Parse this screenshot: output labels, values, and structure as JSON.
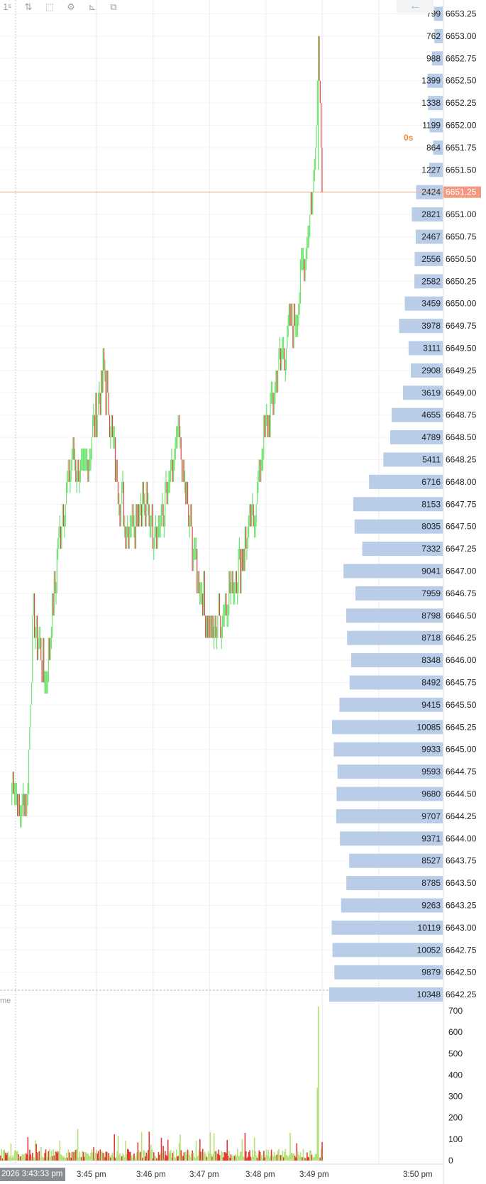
{
  "toolbar": {
    "items": [
      {
        "label": "1ˢ",
        "icon": "interval-selector"
      },
      {
        "label": "⇅",
        "icon": "chart-type-icon"
      },
      {
        "label": "⬚",
        "icon": "selection-icon"
      },
      {
        "label": "⚙",
        "icon": "gear-icon"
      },
      {
        "label": "⊾",
        "icon": "axis-icon"
      },
      {
        "label": "⧉",
        "icon": "layers-icon"
      }
    ],
    "back_icon": "←"
  },
  "colors": {
    "up": "#6ee36e",
    "down": "#e04545",
    "profile_bar": "#b9cde8",
    "current_price_bg": "#f4987f",
    "timer": "#f08a3c",
    "vol_up": "#b5e07a",
    "vol_down": "#e53935"
  },
  "timer_text": "0s",
  "volume_title": "me",
  "crosshair_time": "2026 3:43:33 pm",
  "current_price": "6651.25",
  "chart_data": [
    {
      "type": "bar",
      "subtype": "candlestick-with-volume-profile",
      "price_axis": [
        "6653.25",
        "6653.00",
        "6652.75",
        "6652.50",
        "6652.25",
        "6652.00",
        "6651.75",
        "6651.50",
        "6651.25",
        "6651.00",
        "6650.75",
        "6650.50",
        "6650.25",
        "6650.00",
        "6649.75",
        "6649.50",
        "6649.25",
        "6649.00",
        "6648.75",
        "6648.50",
        "6648.25",
        "6648.00",
        "6647.75",
        "6647.50",
        "6647.25",
        "6647.00",
        "6646.75",
        "6646.50",
        "6646.25",
        "6646.00",
        "6645.75",
        "6645.50",
        "6645.25",
        "6645.00",
        "6644.75",
        "6644.50",
        "6644.25",
        "6644.00",
        "6643.75",
        "6643.50",
        "6643.25",
        "6643.00",
        "6642.75",
        "6642.50",
        "6642.25"
      ],
      "volume_profile": [
        799,
        762,
        988,
        1399,
        1338,
        1199,
        864,
        1227,
        2424,
        2821,
        2467,
        2556,
        2582,
        3459,
        3978,
        3111,
        2908,
        3619,
        4655,
        4789,
        5411,
        6716,
        8153,
        8035,
        7332,
        9041,
        7959,
        8798,
        8718,
        8348,
        8492,
        9415,
        10085,
        9933,
        9593,
        9680,
        9707,
        9371,
        8527,
        8785,
        9263,
        10119,
        10052,
        9879,
        10348
      ],
      "time_labels": [
        "3:45 pm",
        "3:46 pm",
        "3:47 pm",
        "3:48 pm",
        "3:49 pm",
        "3:50 pm"
      ],
      "price_path": [
        [
          "3:43:29",
          6644.5
        ],
        [
          "3:43:31",
          6644.75
        ],
        [
          "3:43:37",
          6644.25
        ],
        [
          "3:43:45",
          6644.5
        ],
        [
          "3:43:48",
          6645.25
        ],
        [
          "3:43:52",
          6646.5
        ],
        [
          "3:44:05",
          6645.75
        ],
        [
          "3:44:10",
          6646.25
        ],
        [
          "3:44:14",
          6646.75
        ],
        [
          "3:44:20",
          6647.5
        ],
        [
          "3:44:34",
          6648.25
        ],
        [
          "3:44:44",
          6648.0
        ],
        [
          "3:45:07",
          6649.25
        ],
        [
          "3:45:18",
          6648.25
        ],
        [
          "3:45:30",
          6647.5
        ],
        [
          "3:45:47",
          6647.75
        ],
        [
          "3:46:06",
          6647.5
        ],
        [
          "3:46:18",
          6648.0
        ],
        [
          "3:46:26",
          6648.5
        ],
        [
          "3:46:41",
          6647.25
        ],
        [
          "3:47:01",
          6646.25
        ],
        [
          "3:47:19",
          6646.75
        ],
        [
          "3:47:45",
          6647.5
        ],
        [
          "3:47:54",
          6648.25
        ],
        [
          "3:48:08",
          6649.0
        ],
        [
          "3:48:18",
          6649.5
        ],
        [
          "3:48:34",
          6650.0
        ],
        [
          "3:48:40",
          6650.5
        ],
        [
          "3:48:51",
          6651.5
        ],
        [
          "3:48:55",
          6653.0
        ],
        [
          "3:49:00",
          6651.25
        ]
      ],
      "volume_axis": {
        "ylim": [
          0,
          700
        ],
        "ticks": [
          "0",
          "100",
          "200",
          "300",
          "400",
          "500",
          "600",
          "700"
        ]
      },
      "volume_spikes": [
        [
          "3:48:55",
          720
        ],
        [
          "3:48:54",
          340
        ]
      ]
    }
  ]
}
